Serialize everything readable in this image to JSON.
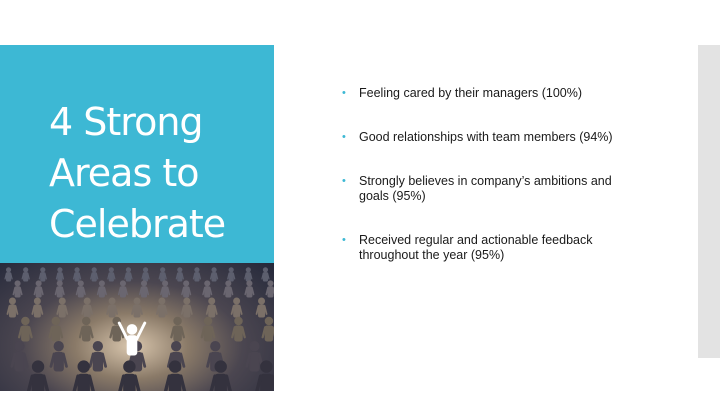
{
  "slide": {
    "title_lines": [
      "4 Strong",
      "Areas to",
      "Celebrate"
    ],
    "colors": {
      "accent": "#3db8d4",
      "title_text": "#ffffff",
      "body_text": "#1a1a1a",
      "side_strip": "#e3e3e3"
    },
    "bullets": [
      "Feeling cared by their managers (100%)",
      "Good relationships with team members (94%)",
      "Strongly believes in company’s ambitions and goals (95%)",
      "Received regular and actionable feedback throughout the year (95%)"
    ]
  }
}
